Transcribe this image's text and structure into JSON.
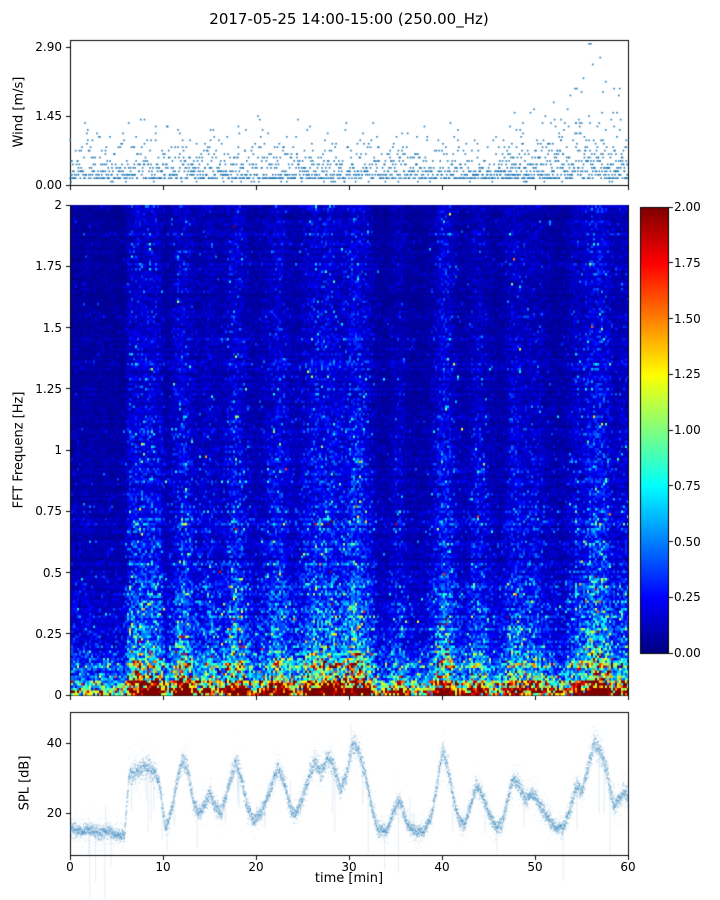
{
  "title": "2017-05-25 14:00-15:00 (250.00_Hz)",
  "chart_data": [
    {
      "type": "scatter",
      "name": "wind-speed",
      "ylabel": "Wind [m/s]",
      "ylim": [
        0,
        3.05
      ],
      "yticks": [
        "0.00",
        "1.45",
        "2.90"
      ],
      "ytick_values": [
        0,
        1.45,
        2.9
      ],
      "xlim": [
        0,
        60
      ],
      "marker_color": "#1f77b4",
      "quantization_step": 0.0725,
      "gust_envelope": [
        [
          0,
          1.0
        ],
        [
          2,
          1.3
        ],
        [
          3,
          0.9
        ],
        [
          5,
          0.8
        ],
        [
          6,
          1.2
        ],
        [
          7,
          1.0
        ],
        [
          8,
          1.6
        ],
        [
          9,
          1.2
        ],
        [
          10,
          1.1
        ],
        [
          11,
          1.5
        ],
        [
          12,
          1.6
        ],
        [
          13,
          1.0
        ],
        [
          14,
          0.9
        ],
        [
          15,
          1.2
        ],
        [
          16,
          0.9
        ],
        [
          17,
          1.0
        ],
        [
          18,
          1.3
        ],
        [
          19,
          1.0
        ],
        [
          20,
          1.4
        ],
        [
          21,
          1.0
        ],
        [
          22,
          1.3
        ],
        [
          23,
          1.0
        ],
        [
          24,
          1.1
        ],
        [
          25,
          1.3
        ],
        [
          26,
          1.0
        ],
        [
          27,
          1.2
        ],
        [
          28,
          0.9
        ],
        [
          29,
          1.1
        ],
        [
          30,
          1.4
        ],
        [
          31,
          1.1
        ],
        [
          32,
          1.0
        ],
        [
          33,
          1.2
        ],
        [
          34,
          0.9
        ],
        [
          35,
          1.1
        ],
        [
          36,
          1.0
        ],
        [
          37,
          1.3
        ],
        [
          38,
          1.1
        ],
        [
          39,
          0.9
        ],
        [
          40,
          1.4
        ],
        [
          41,
          1.1
        ],
        [
          42,
          1.2
        ],
        [
          43,
          0.9
        ],
        [
          44,
          1.0
        ],
        [
          45,
          0.8
        ],
        [
          46,
          0.9
        ],
        [
          47,
          1.2
        ],
        [
          48,
          1.4
        ],
        [
          49,
          1.2
        ],
        [
          50,
          1.5
        ],
        [
          51,
          1.3
        ],
        [
          52,
          1.6
        ],
        [
          53,
          1.4
        ],
        [
          54,
          1.8
        ],
        [
          55,
          2.4
        ],
        [
          56,
          2.9
        ],
        [
          57,
          2.5
        ],
        [
          58,
          1.8
        ],
        [
          59,
          1.9
        ],
        [
          60,
          1.6
        ]
      ]
    },
    {
      "type": "heatmap",
      "name": "fft-spectrogram",
      "ylabel": "FFT Frequenz [Hz]",
      "ylim": [
        0,
        2
      ],
      "yticks": [
        "2",
        "1.75",
        "1.5",
        "1.25",
        "1",
        "0.75",
        "0.5",
        "0.25",
        "0"
      ],
      "ytick_values": [
        2,
        1.75,
        1.5,
        1.25,
        1,
        0.75,
        0.5,
        0.25,
        0
      ],
      "xlim": [
        0,
        60
      ],
      "colormap": "jet",
      "vmin": 0,
      "vmax": 2,
      "colorbar_ticks": [
        "2.00",
        "1.75",
        "1.50",
        "1.25",
        "1.00",
        "0.75",
        "0.50",
        "0.25",
        "0.00"
      ],
      "colorbar_tick_values": [
        2,
        1.75,
        1.5,
        1.25,
        1,
        0.75,
        0.5,
        0.25,
        0
      ],
      "freq_profile": [
        [
          0,
          3.4
        ],
        [
          0.03,
          2.6
        ],
        [
          0.06,
          1.5
        ],
        [
          0.1,
          1.0
        ],
        [
          0.15,
          0.75
        ],
        [
          0.2,
          0.58
        ],
        [
          0.3,
          0.42
        ],
        [
          0.4,
          0.34
        ],
        [
          0.5,
          0.3
        ],
        [
          0.7,
          0.24
        ],
        [
          1.0,
          0.2
        ],
        [
          1.5,
          0.16
        ],
        [
          2.0,
          0.14
        ]
      ],
      "time_intensity": "follows SPL envelope; quiet vertical streaks near t=33-38 and t=45-46, energy concentrated below 0.3 Hz, solid red band below 0.05 Hz"
    },
    {
      "type": "line",
      "name": "spl",
      "ylabel": "SPL [dB]",
      "xlabel": "time [min]",
      "ylim": [
        8,
        49
      ],
      "yticks": [
        "20",
        "40"
      ],
      "ytick_values": [
        20,
        40
      ],
      "xticks": [
        "0",
        "10",
        "20",
        "30",
        "40",
        "50",
        "60"
      ],
      "xtick_values": [
        0,
        10,
        20,
        30,
        40,
        50,
        60
      ],
      "line_color": "#1f77b4",
      "envelope": [
        [
          0,
          16
        ],
        [
          1,
          15
        ],
        [
          2,
          15.5
        ],
        [
          3,
          14.5
        ],
        [
          4,
          15
        ],
        [
          5,
          14
        ],
        [
          5.8,
          13.5
        ],
        [
          6.3,
          31
        ],
        [
          7,
          32
        ],
        [
          8,
          33.5
        ],
        [
          9,
          32
        ],
        [
          9.6,
          28
        ],
        [
          10.2,
          16
        ],
        [
          10.8,
          20
        ],
        [
          11.5,
          30
        ],
        [
          12,
          35
        ],
        [
          12.6,
          33
        ],
        [
          13.2,
          23
        ],
        [
          13.8,
          20
        ],
        [
          14.5,
          23
        ],
        [
          15,
          26
        ],
        [
          15.6,
          22
        ],
        [
          16.2,
          20
        ],
        [
          17,
          28
        ],
        [
          17.8,
          35
        ],
        [
          18.4,
          30
        ],
        [
          19,
          22
        ],
        [
          19.7,
          18
        ],
        [
          20.5,
          20
        ],
        [
          21.5,
          27
        ],
        [
          22.3,
          33
        ],
        [
          23,
          29
        ],
        [
          23.7,
          21
        ],
        [
          24.3,
          20
        ],
        [
          25,
          25
        ],
        [
          25.7,
          31
        ],
        [
          26.3,
          35
        ],
        [
          27,
          32
        ],
        [
          27.7,
          36
        ],
        [
          28.4,
          33
        ],
        [
          29,
          27
        ],
        [
          29.7,
          31
        ],
        [
          30.3,
          40
        ],
        [
          31,
          38
        ],
        [
          31.8,
          30
        ],
        [
          32.4,
          22
        ],
        [
          33,
          16
        ],
        [
          34,
          15
        ],
        [
          34.8,
          21
        ],
        [
          35.4,
          24
        ],
        [
          36.2,
          17
        ],
        [
          37,
          15
        ],
        [
          38,
          15
        ],
        [
          38.8,
          19
        ],
        [
          39.4,
          28
        ],
        [
          40,
          38
        ],
        [
          40.6,
          33
        ],
        [
          41.2,
          24
        ],
        [
          41.8,
          18
        ],
        [
          42.4,
          17
        ],
        [
          43,
          22
        ],
        [
          43.6,
          28
        ],
        [
          44.2,
          26
        ],
        [
          45,
          20
        ],
        [
          45.8,
          16
        ],
        [
          46.4,
          17
        ],
        [
          47,
          24
        ],
        [
          47.6,
          30
        ],
        [
          48.2,
          28
        ],
        [
          49,
          24
        ],
        [
          49.6,
          26
        ],
        [
          50.2,
          24
        ],
        [
          51,
          20
        ],
        [
          51.8,
          17
        ],
        [
          52.4,
          16
        ],
        [
          53,
          16
        ],
        [
          53.8,
          22
        ],
        [
          54.4,
          28
        ],
        [
          55,
          26
        ],
        [
          55.7,
          34
        ],
        [
          56.3,
          40
        ],
        [
          57,
          38
        ],
        [
          57.7,
          32
        ],
        [
          58.4,
          22
        ],
        [
          59,
          24
        ],
        [
          59.6,
          26
        ],
        [
          60,
          25
        ]
      ]
    }
  ]
}
